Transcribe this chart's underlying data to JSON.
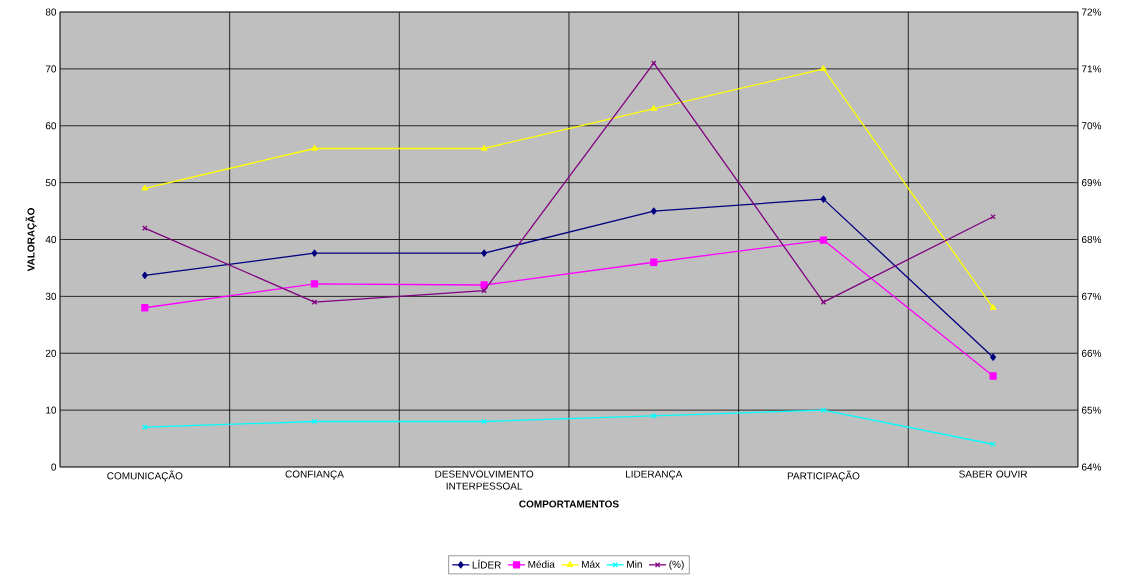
{
  "chart_data": {
    "type": "line",
    "xlabel": "COMPORTAMENTOS",
    "ylabel": "VALORAÇÃO",
    "categories": [
      "COMUNICAÇÃO",
      "CONFIANÇA",
      "DESENVOLVIMENTO INTERPESSOAL",
      "LIDERANÇA",
      "PARTICIPAÇÃO",
      "SABER OUVIR"
    ],
    "series": [
      {
        "name": "LÍDER",
        "color": "#000080",
        "marker": "diamond",
        "values": [
          33.7,
          37.6,
          37.6,
          45,
          47.1,
          19.3
        ]
      },
      {
        "name": "Média",
        "color": "#ff00ff",
        "marker": "square",
        "values": [
          28,
          32.2,
          32,
          36,
          39.9,
          16
        ]
      },
      {
        "name": "Máx",
        "color": "#ffff00",
        "marker": "triangle",
        "values": [
          49,
          56,
          56,
          63,
          70,
          28
        ]
      },
      {
        "name": "Min",
        "color": "#00ffff",
        "marker": "cross",
        "values": [
          7,
          8,
          8,
          9,
          10,
          4
        ]
      },
      {
        "name": "(%)",
        "color": "#800080",
        "marker": "cross",
        "axis": "y2",
        "values": [
          68.2,
          66.9,
          67.1,
          71.1,
          66.9,
          68.4
        ]
      }
    ],
    "ylim": [
      0,
      80
    ],
    "yticks": [
      0,
      10,
      20,
      30,
      40,
      50,
      60,
      70,
      80
    ],
    "y2lim": [
      64,
      72
    ],
    "y2ticks": [
      {
        "value": 64,
        "label": "64%"
      },
      {
        "value": 65,
        "label": "65%"
      },
      {
        "value": 66,
        "label": "66%"
      },
      {
        "value": 67,
        "label": "67%"
      },
      {
        "value": 68,
        "label": "68%"
      },
      {
        "value": 69,
        "label": "69%"
      },
      {
        "value": 70,
        "label": "70%"
      },
      {
        "value": 71,
        "label": "71%"
      },
      {
        "value": 72,
        "label": "72%"
      }
    ],
    "grid": true,
    "legend": "bottom"
  }
}
